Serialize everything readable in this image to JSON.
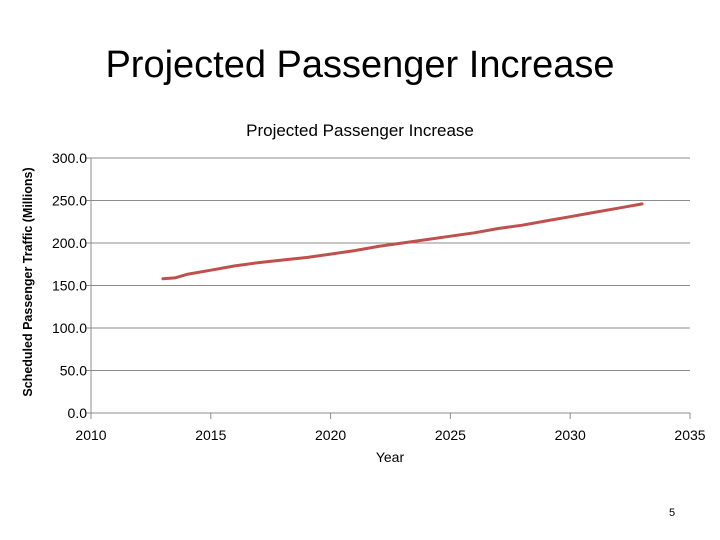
{
  "slide": {
    "title": "Projected Passenger Increase",
    "page_number": "5"
  },
  "chart_data": {
    "type": "line",
    "title": "Projected Passenger Increase",
    "xlabel": "Year",
    "ylabel": "Scheduled Passenger Traffic (Millions)",
    "xlim": [
      2010,
      2035
    ],
    "ylim": [
      0,
      300
    ],
    "x_ticks": [
      2010,
      2015,
      2020,
      2025,
      2030,
      2035
    ],
    "y_ticks": [
      "0.0",
      "50.0",
      "100.0",
      "150.0",
      "200.0",
      "250.0",
      "300.0"
    ],
    "grid": "horizontal",
    "legend": "none",
    "series": [
      {
        "color": "#c0504d",
        "x": [
          2013,
          2013.5,
          2014,
          2015,
          2016,
          2017,
          2018,
          2019,
          2020,
          2021,
          2022,
          2023,
          2024,
          2025,
          2026,
          2027,
          2028,
          2029,
          2030,
          2031,
          2032,
          2033
        ],
        "y": [
          158,
          159,
          163,
          168,
          173,
          177,
          180,
          183,
          187,
          191,
          196,
          200,
          204,
          208,
          212,
          217,
          221,
          226,
          231,
          236,
          241,
          246
        ]
      }
    ]
  }
}
